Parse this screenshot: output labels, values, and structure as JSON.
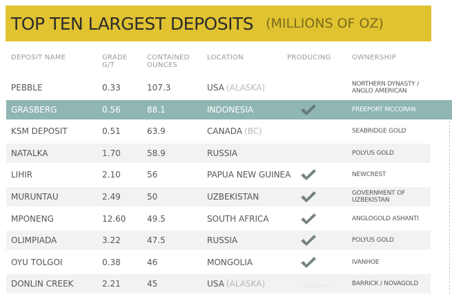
{
  "title": "TOP TEN LARGEST DEPOSITS",
  "subtitle": "(MILLIONS OF OZ)",
  "columns": {
    "name": "DEPOSIT NAME",
    "grade_l1": "GRADE",
    "grade_l2": "G/T",
    "ounces_l1": "CONTAINED",
    "ounces_l2": "OUNCES",
    "location": "LOCATION",
    "producing": "PRODUCING",
    "ownership": "OWNERSHIP"
  },
  "colors": {
    "title_bar": "#e1c231",
    "highlight_row": "#8fb6b2",
    "alt_row": "#f2f2f2",
    "check": "#5f6f6e"
  },
  "chart_data": {
    "type": "table",
    "rows": [
      {
        "name": "PEBBLE",
        "grade": "0.33",
        "ounces": "107.3",
        "location": "USA",
        "location_sub": "(ALASKA)",
        "producing": false,
        "owner_l1": "NORTHERN DYNASTY /",
        "owner_l2": "ANGLO AMERICAN"
      },
      {
        "name": "GRASBERG",
        "grade": "0.56",
        "ounces": "88.1",
        "location": "INDONESIA",
        "location_sub": "",
        "producing": true,
        "owner_l1": "FREEPORT McCORAN",
        "owner_l2": ""
      },
      {
        "name": "KSM DEPOSIT",
        "grade": "0.51",
        "ounces": "63.9",
        "location": "CANADA",
        "location_sub": "(BC)",
        "producing": false,
        "owner_l1": "SEABRIDGE GOLD",
        "owner_l2": ""
      },
      {
        "name": "NATALKA",
        "grade": "1.70",
        "ounces": "58.9",
        "location": "RUSSIA",
        "location_sub": "",
        "producing": false,
        "owner_l1": "POLYUS GOLD",
        "owner_l2": ""
      },
      {
        "name": "LIHIR",
        "grade": "2.10",
        "ounces": "56",
        "location": "PAPUA NEW GUINEA",
        "location_sub": "",
        "producing": true,
        "owner_l1": "NEWCREST",
        "owner_l2": ""
      },
      {
        "name": "MURUNTAU",
        "grade": "2.49",
        "ounces": "50",
        "location": "UZBEKISTAN",
        "location_sub": "",
        "producing": true,
        "owner_l1": "GOVERNMENT OF",
        "owner_l2": "UZBEKISTAN"
      },
      {
        "name": "MPONENG",
        "grade": "12.60",
        "ounces": "49.5",
        "location": "SOUTH AFRICA",
        "location_sub": "",
        "producing": true,
        "owner_l1": "ANGLOGOLD ASHANTI",
        "owner_l2": ""
      },
      {
        "name": "OLIMPIADA",
        "grade": "3.22",
        "ounces": "47.5",
        "location": "RUSSIA",
        "location_sub": "",
        "producing": true,
        "owner_l1": "POLYUS GOLD",
        "owner_l2": ""
      },
      {
        "name": "OYU TOLGOI",
        "grade": "0.38",
        "ounces": "46",
        "location": "MONGOLIA",
        "location_sub": "",
        "producing": true,
        "owner_l1": "IVANHOE",
        "owner_l2": ""
      },
      {
        "name": "DONLIN CREEK",
        "grade": "2.21",
        "ounces": "45",
        "location": "USA",
        "location_sub": "(ALASKA)",
        "producing": false,
        "owner_l1": "BARRICK / NOVAGOLD",
        "owner_l2": ""
      }
    ]
  }
}
